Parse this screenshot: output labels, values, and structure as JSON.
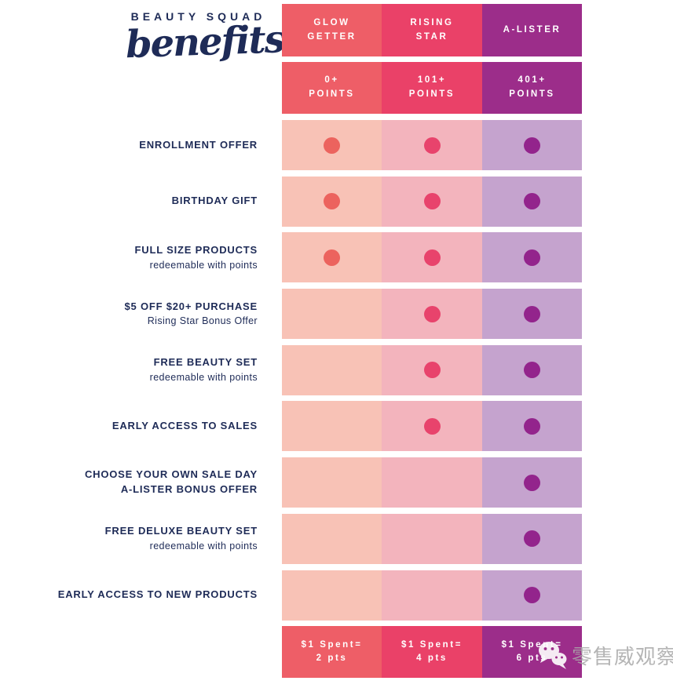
{
  "title": {
    "line1": "BEAUTY SQUAD",
    "line2": "benefits"
  },
  "colors": {
    "navy": "#1e2b57",
    "background": "#ffffff",
    "watermark_grey": "#a9a9a9",
    "coral": "#ee5e67",
    "pink": "#ea4168",
    "purple": "#9c2d8a"
  },
  "tiers": [
    {
      "name": "GLOW\nGETTER",
      "points": "0+\nPOINTS",
      "earn": "$1 Spent=\n2 pts",
      "color": "#ee5e67",
      "light": "#f8c2b6",
      "dot": "#ec635e"
    },
    {
      "name": "RISING\nSTAR",
      "points": "101+\nPOINTS",
      "earn": "$1 Spent=\n4 pts",
      "color": "#ea4168",
      "light": "#f3b4bd",
      "dot": "#e8436c"
    },
    {
      "name": "A-LISTER",
      "points": "401+\nPOINTS",
      "earn": "$1 Spent=\n6 pts",
      "color": "#9c2d8a",
      "light": "#c5a3ce",
      "dot": "#93248c"
    }
  ],
  "rows": [
    {
      "label": "ENROLLMENT OFFER",
      "sublabel": "",
      "sublabel_bold": false,
      "dots": [
        true,
        true,
        true
      ]
    },
    {
      "label": "BIRTHDAY GIFT",
      "sublabel": "",
      "sublabel_bold": false,
      "dots": [
        true,
        true,
        true
      ]
    },
    {
      "label": "FULL SIZE PRODUCTS",
      "sublabel": "redeemable with points",
      "sublabel_bold": false,
      "dots": [
        true,
        true,
        true
      ]
    },
    {
      "label": "$5 OFF $20+ PURCHASE",
      "sublabel": "Rising Star Bonus Offer",
      "sublabel_bold": false,
      "dots": [
        false,
        true,
        true
      ]
    },
    {
      "label": "FREE BEAUTY SET",
      "sublabel": "redeemable with points",
      "sublabel_bold": false,
      "dots": [
        false,
        true,
        true
      ]
    },
    {
      "label": "EARLY ACCESS TO SALES",
      "sublabel": "",
      "sublabel_bold": false,
      "dots": [
        false,
        true,
        true
      ]
    },
    {
      "label": "CHOOSE YOUR OWN SALE DAY",
      "sublabel": "A-LISTER BONUS OFFER",
      "sublabel_bold": true,
      "dots": [
        false,
        false,
        true
      ]
    },
    {
      "label": "FREE DELUXE BEAUTY SET",
      "sublabel": "redeemable with points",
      "sublabel_bold": false,
      "dots": [
        false,
        false,
        true
      ]
    },
    {
      "label": "EARLY ACCESS TO NEW PRODUCTS",
      "sublabel": "",
      "sublabel_bold": false,
      "dots": [
        false,
        false,
        true
      ]
    }
  ],
  "watermark": {
    "icon": "wechat-icon",
    "text": "零售威观察"
  },
  "chart_data": {
    "type": "table",
    "title": "BEAUTY SQUAD benefits",
    "columns": [
      "GLOW GETTER",
      "RISING STAR",
      "A-LISTER"
    ],
    "column_thresholds": [
      "0+ POINTS",
      "101+ POINTS",
      "401+ POINTS"
    ],
    "row_labels": [
      "ENROLLMENT OFFER",
      "BIRTHDAY GIFT",
      "FULL SIZE PRODUCTS (redeemable with points)",
      "$5 OFF $20+ PURCHASE (Rising Star Bonus Offer)",
      "FREE BEAUTY SET (redeemable with points)",
      "EARLY ACCESS TO SALES",
      "CHOOSE YOUR OWN SALE DAY (A-LISTER BONUS OFFER)",
      "FREE DELUXE BEAUTY SET (redeemable with points)",
      "EARLY ACCESS TO NEW PRODUCTS"
    ],
    "matrix": [
      [
        1,
        1,
        1
      ],
      [
        1,
        1,
        1
      ],
      [
        1,
        1,
        1
      ],
      [
        0,
        1,
        1
      ],
      [
        0,
        1,
        1
      ],
      [
        0,
        1,
        1
      ],
      [
        0,
        0,
        1
      ],
      [
        0,
        0,
        1
      ],
      [
        0,
        0,
        1
      ]
    ],
    "earn_rates": [
      "$1 Spent= 2 pts",
      "$1 Spent= 4 pts",
      "$1 Spent= 6 pts"
    ],
    "legend_position": "none",
    "grid": "off"
  }
}
